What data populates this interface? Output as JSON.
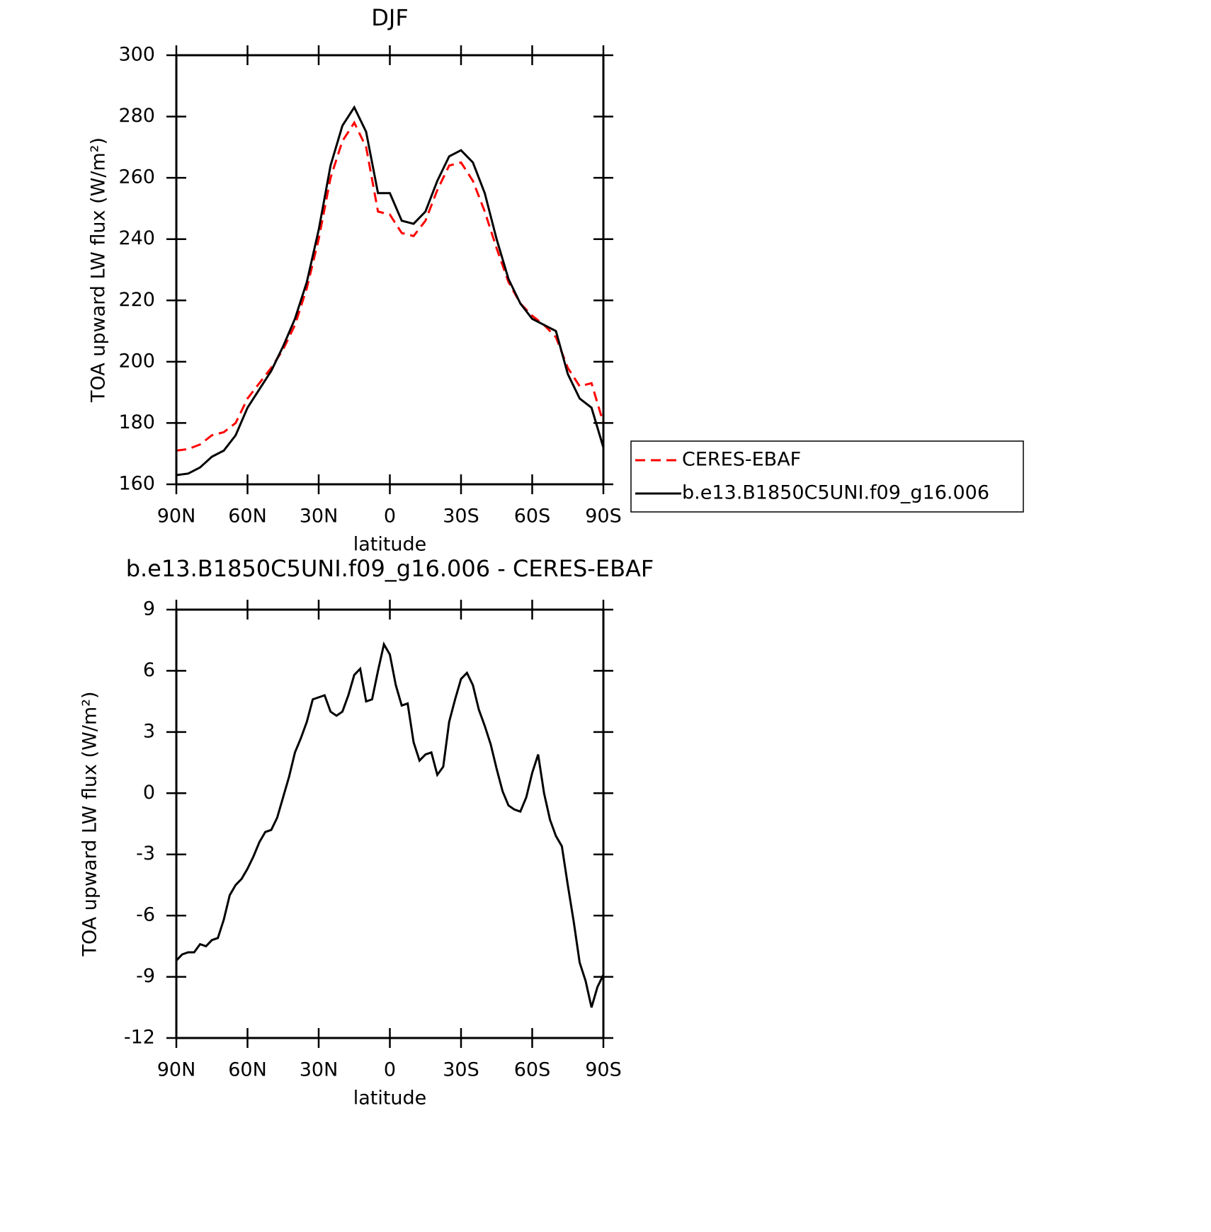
{
  "chart_data": [
    {
      "type": "line",
      "title": "DJF",
      "xlabel": "latitude",
      "ylabel": "TOA upward LW flux (W/m²)",
      "x": [
        90,
        85,
        80,
        75,
        70,
        65,
        60,
        55,
        50,
        45,
        40,
        35,
        30,
        25,
        20,
        15,
        10,
        5,
        0,
        -5,
        -10,
        -15,
        -20,
        -25,
        -30,
        -35,
        -40,
        -45,
        -50,
        -55,
        -60,
        -65,
        -70,
        -75,
        -80,
        -85,
        -90
      ],
      "series": [
        {
          "name": "CERES-EBAF",
          "color": "#ff0000",
          "linestyle": "dashed",
          "values": [
            171,
            171.5,
            173,
            176,
            177,
            180,
            188,
            193,
            198,
            204,
            212,
            224,
            240,
            260,
            272,
            278,
            270,
            249,
            248,
            242,
            241,
            246,
            256,
            264,
            265,
            259,
            249,
            237,
            226,
            219,
            215,
            212,
            208,
            198,
            192,
            193,
            180
          ]
        },
        {
          "name": "b.e13.B1850C5UNI.f09_g16.006",
          "color": "#000000",
          "linestyle": "solid",
          "values": [
            163,
            163.5,
            165.5,
            169,
            171,
            176,
            185,
            191,
            197,
            205,
            214,
            226,
            243,
            264,
            277,
            283,
            275,
            255,
            255,
            246,
            245,
            249,
            259,
            267,
            269,
            265,
            255,
            240,
            227,
            219,
            214,
            212,
            210,
            196,
            188,
            185,
            172
          ]
        }
      ],
      "xlim": [
        90,
        -90
      ],
      "xticks": [
        {
          "value": 90,
          "label": "90N"
        },
        {
          "value": 60,
          "label": "60N"
        },
        {
          "value": 30,
          "label": "30N"
        },
        0,
        {
          "value": -30,
          "label": "30S"
        },
        {
          "value": -60,
          "label": "60S"
        },
        {
          "value": -90,
          "label": "90S"
        }
      ],
      "ylim": [
        160,
        300
      ],
      "yticks": [
        160,
        180,
        200,
        220,
        240,
        260,
        280,
        300
      ],
      "legend": "right"
    },
    {
      "type": "line",
      "title": "b.e13.B1850C5UNI.f09_g16.006 - CERES-EBAF",
      "xlabel": "latitude",
      "ylabel": "TOA upward LW flux (W/m²)",
      "x": [
        90,
        87.5,
        85,
        82.5,
        80,
        77.5,
        75,
        72.5,
        70,
        67.5,
        65,
        62.5,
        60,
        57.5,
        55,
        52.5,
        50,
        47.5,
        45,
        42.5,
        40,
        37.5,
        35,
        32.5,
        30,
        27.5,
        25,
        22.5,
        20,
        17.5,
        15,
        12.5,
        10,
        7.5,
        5,
        2.5,
        0,
        -2.5,
        -5,
        -7.5,
        -10,
        -12.5,
        -15,
        -17.5,
        -20,
        -22.5,
        -25,
        -27.5,
        -30,
        -32.5,
        -35,
        -37.5,
        -40,
        -42.5,
        -45,
        -47.5,
        -50,
        -52.5,
        -55,
        -57.5,
        -60,
        -62.5,
        -65,
        -67.5,
        -70,
        -72.5,
        -75,
        -77.5,
        -80,
        -82.5,
        -85,
        -87.5,
        -90
      ],
      "series": [
        {
          "name": "b.e13.B1850C5UNI.f09_g16.006 - CERES-EBAF",
          "color": "#000000",
          "linestyle": "solid",
          "values": [
            -8.2,
            -7.9,
            -7.8,
            -7.8,
            -7.4,
            -7.5,
            -7.2,
            -7.1,
            -6.2,
            -5.0,
            -4.5,
            -4.2,
            -3.7,
            -3.1,
            -2.4,
            -1.9,
            -1.8,
            -1.2,
            -0.2,
            0.8,
            2.0,
            2.7,
            3.5,
            4.6,
            4.7,
            4.8,
            4.0,
            3.8,
            4.0,
            4.8,
            5.8,
            6.1,
            4.5,
            4.6,
            6.0,
            7.3,
            6.8,
            5.3,
            4.3,
            4.4,
            2.5,
            1.6,
            1.9,
            2.0,
            0.9,
            1.3,
            3.5,
            4.6,
            5.6,
            5.9,
            5.3,
            4.1,
            3.3,
            2.4,
            1.2,
            0.1,
            -0.6,
            -0.8,
            -0.9,
            -0.2,
            1.0,
            1.9,
            0.0,
            -1.3,
            -2.1,
            -2.6,
            -4.5,
            -6.3,
            -8.3,
            -9.2,
            -10.5,
            -9.5,
            -8.9
          ]
        }
      ],
      "xlim": [
        90,
        -90
      ],
      "xticks": [
        {
          "value": 90,
          "label": "90N"
        },
        {
          "value": 60,
          "label": "60N"
        },
        {
          "value": 30,
          "label": "30N"
        },
        0,
        {
          "value": -30,
          "label": "30S"
        },
        {
          "value": -60,
          "label": "60S"
        },
        {
          "value": -90,
          "label": "90S"
        }
      ],
      "ylim": [
        -12,
        9
      ],
      "yticks": [
        -12,
        -9,
        -6,
        -3,
        0,
        3,
        6,
        9
      ]
    }
  ]
}
